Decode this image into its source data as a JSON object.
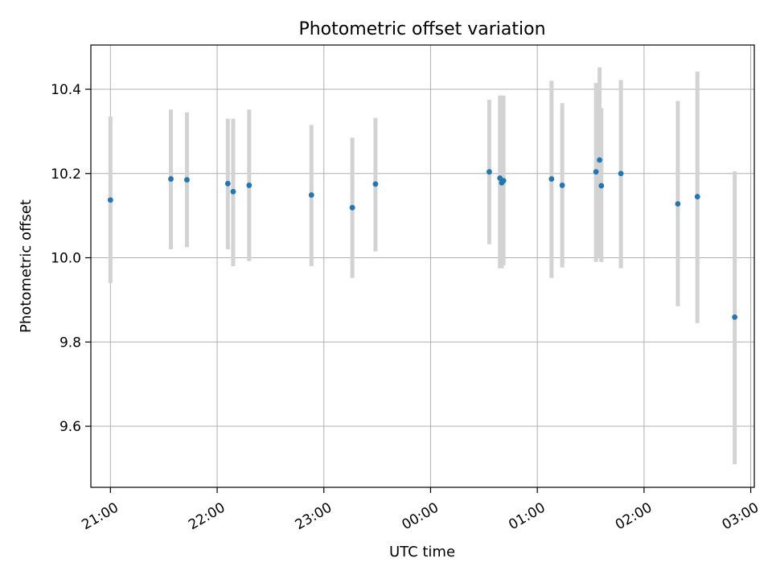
{
  "chart_data": {
    "type": "scatter",
    "title": "Photometric offset variation",
    "xlabel": "UTC time",
    "ylabel": "Photometric offset",
    "xlim": [
      "20:49",
      "03:02"
    ],
    "ylim": [
      9.455,
      10.505
    ],
    "xticks": [
      "21:00",
      "22:00",
      "23:00",
      "00:00",
      "01:00",
      "02:00",
      "03:00"
    ],
    "yticks": [
      9.6,
      9.8,
      10.0,
      10.2,
      10.4
    ],
    "ytick_labels": [
      "9.6",
      "9.8",
      "10.0",
      "10.2",
      "10.4"
    ],
    "grid": true,
    "colors": {
      "point": "#1f77b4",
      "errorbar": "#d3d3d3",
      "grid": "#b0b0b0"
    },
    "points": [
      {
        "x": "21:00",
        "y": 10.137,
        "ylow": 9.94,
        "yhigh": 10.335
      },
      {
        "x": "21:34",
        "y": 10.187,
        "ylow": 10.02,
        "yhigh": 10.352
      },
      {
        "x": "21:43",
        "y": 10.185,
        "ylow": 10.025,
        "yhigh": 10.345
      },
      {
        "x": "22:06",
        "y": 10.176,
        "ylow": 10.02,
        "yhigh": 10.33
      },
      {
        "x": "22:09",
        "y": 10.157,
        "ylow": 9.98,
        "yhigh": 10.33
      },
      {
        "x": "22:18",
        "y": 10.172,
        "ylow": 9.992,
        "yhigh": 10.352
      },
      {
        "x": "22:53",
        "y": 10.149,
        "ylow": 9.98,
        "yhigh": 10.315
      },
      {
        "x": "23:16",
        "y": 10.119,
        "ylow": 9.952,
        "yhigh": 10.285
      },
      {
        "x": "23:29",
        "y": 10.175,
        "ylow": 10.015,
        "yhigh": 10.332
      },
      {
        "x": "00:33",
        "y": 10.204,
        "ylow": 10.032,
        "yhigh": 10.375
      },
      {
        "x": "00:39",
        "y": 10.189,
        "ylow": 9.975,
        "yhigh": 10.385
      },
      {
        "x": "00:40",
        "y": 10.178,
        "ylow": 9.975,
        "yhigh": 10.385
      },
      {
        "x": "00:41",
        "y": 10.183,
        "ylow": 9.982,
        "yhigh": 10.385
      },
      {
        "x": "01:08",
        "y": 10.187,
        "ylow": 9.952,
        "yhigh": 10.42
      },
      {
        "x": "01:14",
        "y": 10.172,
        "ylow": 9.977,
        "yhigh": 10.367
      },
      {
        "x": "01:33",
        "y": 10.204,
        "ylow": 9.99,
        "yhigh": 10.415
      },
      {
        "x": "01:35",
        "y": 10.232,
        "ylow": 10.0,
        "yhigh": 10.452
      },
      {
        "x": "01:36",
        "y": 10.171,
        "ylow": 9.99,
        "yhigh": 10.355
      },
      {
        "x": "01:47",
        "y": 10.2,
        "ylow": 9.975,
        "yhigh": 10.422
      },
      {
        "x": "02:19",
        "y": 10.128,
        "ylow": 9.885,
        "yhigh": 10.372
      },
      {
        "x": "02:30",
        "y": 10.145,
        "ylow": 9.845,
        "yhigh": 10.442
      },
      {
        "x": "02:51",
        "y": 9.859,
        "ylow": 9.51,
        "yhigh": 10.205
      }
    ]
  }
}
